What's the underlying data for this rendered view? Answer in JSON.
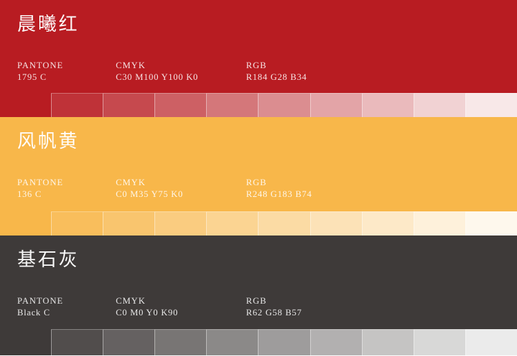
{
  "sections": [
    {
      "name": "晨曦红",
      "color_hex": "#B81C22",
      "base_rgb": [
        184,
        28,
        34
      ],
      "specs": [
        {
          "label": "PANTONE",
          "value": "1795 C"
        },
        {
          "label": "CMYK",
          "value": "C30 M100 Y100 K0"
        },
        {
          "label": "RGB",
          "value": "R184 G28 B34"
        }
      ],
      "tint_alphas": [
        1,
        0.9,
        0.8,
        0.7,
        0.6,
        0.5,
        0.4,
        0.3,
        0.2,
        0.1
      ]
    },
    {
      "name": "风帆黄",
      "color_hex": "#F8B74A",
      "base_rgb": [
        248,
        183,
        74
      ],
      "specs": [
        {
          "label": "PANTONE",
          "value": "136 C"
        },
        {
          "label": "CMYK",
          "value": "C0 M35 Y75 K0"
        },
        {
          "label": "RGB",
          "value": "R248 G183 B74"
        }
      ],
      "tint_alphas": [
        1,
        0.9,
        0.8,
        0.7,
        0.6,
        0.5,
        0.4,
        0.3,
        0.2,
        0.1
      ]
    },
    {
      "name": "基石灰",
      "color_hex": "#3E3A39",
      "base_rgb": [
        62,
        58,
        57
      ],
      "specs": [
        {
          "label": "PANTONE",
          "value": "Black C"
        },
        {
          "label": "CMYK",
          "value": "C0 M0 Y0 K90"
        },
        {
          "label": "RGB",
          "value": "R62 G58 B57"
        }
      ],
      "tint_alphas": [
        1,
        0.9,
        0.8,
        0.7,
        0.6,
        0.5,
        0.4,
        0.3,
        0.2,
        0.1
      ]
    }
  ]
}
